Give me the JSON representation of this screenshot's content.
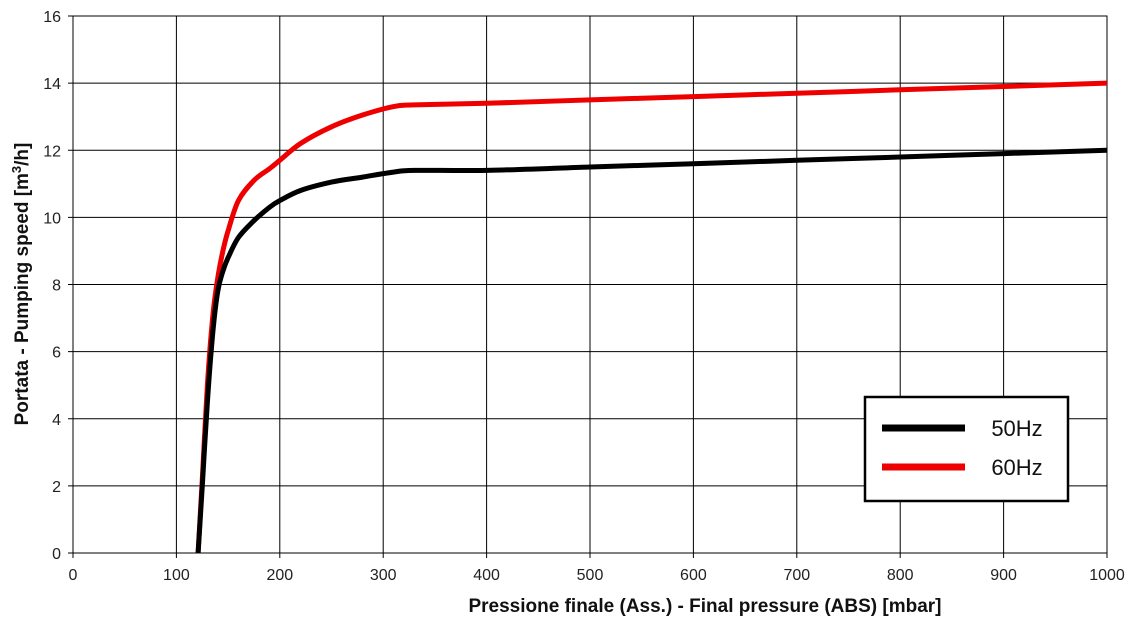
{
  "chart_data": {
    "type": "line",
    "title": "",
    "xlabel": "Pressione finale (Ass.) - Final pressure (ABS) [mbar]",
    "ylabel_main": "Portata - Pumping speed [m",
    "ylabel_sup": "3",
    "ylabel_tail": "/h]",
    "xlim": [
      0,
      1000
    ],
    "ylim": [
      0,
      16
    ],
    "xticks": [
      "0",
      "100",
      "200",
      "300",
      "400",
      "500",
      "600",
      "700",
      "800",
      "900",
      "1000"
    ],
    "yticks": [
      "0",
      "2",
      "4",
      "6",
      "8",
      "10",
      "12",
      "14",
      "16"
    ],
    "grid": true,
    "legend_position": "bottom-right",
    "series": [
      {
        "name": "50Hz",
        "color": "#000000",
        "x": [
          121,
          125,
          130,
          135,
          140,
          145,
          150,
          160,
          175,
          190,
          200,
          220,
          250,
          280,
          310,
          330,
          400,
          500,
          600,
          700,
          800,
          900,
          1000
        ],
        "y": [
          0,
          2.0,
          4.5,
          6.5,
          7.8,
          8.4,
          8.8,
          9.4,
          9.9,
          10.3,
          10.5,
          10.8,
          11.05,
          11.2,
          11.35,
          11.4,
          11.4,
          11.5,
          11.6,
          11.7,
          11.8,
          11.9,
          12.0
        ]
      },
      {
        "name": "60Hz",
        "color": "#ee0000",
        "x": [
          121,
          125,
          130,
          135,
          140,
          145,
          150,
          160,
          175,
          190,
          200,
          220,
          250,
          280,
          310,
          330,
          400,
          500,
          600,
          700,
          800,
          900,
          1000
        ],
        "y": [
          0,
          2.2,
          5.0,
          7.0,
          8.2,
          9.0,
          9.6,
          10.5,
          11.1,
          11.45,
          11.7,
          12.2,
          12.7,
          13.05,
          13.3,
          13.35,
          13.4,
          13.5,
          13.6,
          13.7,
          13.8,
          13.9,
          14.0
        ]
      }
    ]
  }
}
